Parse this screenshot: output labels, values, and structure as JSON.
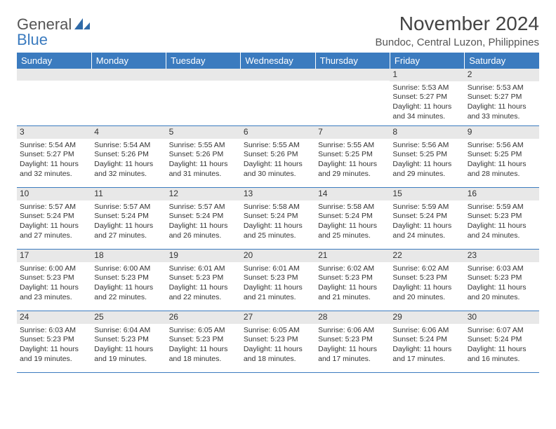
{
  "brand": {
    "line1": "General",
    "line2": "Blue"
  },
  "title": "November 2024",
  "location": "Bundoc, Central Luzon, Philippines",
  "colors": {
    "header_bg": "#3b7bbf",
    "header_fg": "#ffffff",
    "daynum_bg": "#e8e8e8",
    "cell_border": "#3b7bbf",
    "page_bg": "#ffffff",
    "text": "#333333"
  },
  "typography": {
    "title_fontsize": 28,
    "location_fontsize": 15,
    "dayhead_fontsize": 13,
    "cell_fontsize": 10.5
  },
  "day_headers": [
    "Sunday",
    "Monday",
    "Tuesday",
    "Wednesday",
    "Thursday",
    "Friday",
    "Saturday"
  ],
  "weeks": [
    [
      {
        "day": "",
        "sunrise": "",
        "sunset": "",
        "daylight": ""
      },
      {
        "day": "",
        "sunrise": "",
        "sunset": "",
        "daylight": ""
      },
      {
        "day": "",
        "sunrise": "",
        "sunset": "",
        "daylight": ""
      },
      {
        "day": "",
        "sunrise": "",
        "sunset": "",
        "daylight": ""
      },
      {
        "day": "",
        "sunrise": "",
        "sunset": "",
        "daylight": ""
      },
      {
        "day": "1",
        "sunrise": "Sunrise: 5:53 AM",
        "sunset": "Sunset: 5:27 PM",
        "daylight": "Daylight: 11 hours and 34 minutes."
      },
      {
        "day": "2",
        "sunrise": "Sunrise: 5:53 AM",
        "sunset": "Sunset: 5:27 PM",
        "daylight": "Daylight: 11 hours and 33 minutes."
      }
    ],
    [
      {
        "day": "3",
        "sunrise": "Sunrise: 5:54 AM",
        "sunset": "Sunset: 5:27 PM",
        "daylight": "Daylight: 11 hours and 32 minutes."
      },
      {
        "day": "4",
        "sunrise": "Sunrise: 5:54 AM",
        "sunset": "Sunset: 5:26 PM",
        "daylight": "Daylight: 11 hours and 32 minutes."
      },
      {
        "day": "5",
        "sunrise": "Sunrise: 5:55 AM",
        "sunset": "Sunset: 5:26 PM",
        "daylight": "Daylight: 11 hours and 31 minutes."
      },
      {
        "day": "6",
        "sunrise": "Sunrise: 5:55 AM",
        "sunset": "Sunset: 5:26 PM",
        "daylight": "Daylight: 11 hours and 30 minutes."
      },
      {
        "day": "7",
        "sunrise": "Sunrise: 5:55 AM",
        "sunset": "Sunset: 5:25 PM",
        "daylight": "Daylight: 11 hours and 29 minutes."
      },
      {
        "day": "8",
        "sunrise": "Sunrise: 5:56 AM",
        "sunset": "Sunset: 5:25 PM",
        "daylight": "Daylight: 11 hours and 29 minutes."
      },
      {
        "day": "9",
        "sunrise": "Sunrise: 5:56 AM",
        "sunset": "Sunset: 5:25 PM",
        "daylight": "Daylight: 11 hours and 28 minutes."
      }
    ],
    [
      {
        "day": "10",
        "sunrise": "Sunrise: 5:57 AM",
        "sunset": "Sunset: 5:24 PM",
        "daylight": "Daylight: 11 hours and 27 minutes."
      },
      {
        "day": "11",
        "sunrise": "Sunrise: 5:57 AM",
        "sunset": "Sunset: 5:24 PM",
        "daylight": "Daylight: 11 hours and 27 minutes."
      },
      {
        "day": "12",
        "sunrise": "Sunrise: 5:57 AM",
        "sunset": "Sunset: 5:24 PM",
        "daylight": "Daylight: 11 hours and 26 minutes."
      },
      {
        "day": "13",
        "sunrise": "Sunrise: 5:58 AM",
        "sunset": "Sunset: 5:24 PM",
        "daylight": "Daylight: 11 hours and 25 minutes."
      },
      {
        "day": "14",
        "sunrise": "Sunrise: 5:58 AM",
        "sunset": "Sunset: 5:24 PM",
        "daylight": "Daylight: 11 hours and 25 minutes."
      },
      {
        "day": "15",
        "sunrise": "Sunrise: 5:59 AM",
        "sunset": "Sunset: 5:24 PM",
        "daylight": "Daylight: 11 hours and 24 minutes."
      },
      {
        "day": "16",
        "sunrise": "Sunrise: 5:59 AM",
        "sunset": "Sunset: 5:23 PM",
        "daylight": "Daylight: 11 hours and 24 minutes."
      }
    ],
    [
      {
        "day": "17",
        "sunrise": "Sunrise: 6:00 AM",
        "sunset": "Sunset: 5:23 PM",
        "daylight": "Daylight: 11 hours and 23 minutes."
      },
      {
        "day": "18",
        "sunrise": "Sunrise: 6:00 AM",
        "sunset": "Sunset: 5:23 PM",
        "daylight": "Daylight: 11 hours and 22 minutes."
      },
      {
        "day": "19",
        "sunrise": "Sunrise: 6:01 AM",
        "sunset": "Sunset: 5:23 PM",
        "daylight": "Daylight: 11 hours and 22 minutes."
      },
      {
        "day": "20",
        "sunrise": "Sunrise: 6:01 AM",
        "sunset": "Sunset: 5:23 PM",
        "daylight": "Daylight: 11 hours and 21 minutes."
      },
      {
        "day": "21",
        "sunrise": "Sunrise: 6:02 AM",
        "sunset": "Sunset: 5:23 PM",
        "daylight": "Daylight: 11 hours and 21 minutes."
      },
      {
        "day": "22",
        "sunrise": "Sunrise: 6:02 AM",
        "sunset": "Sunset: 5:23 PM",
        "daylight": "Daylight: 11 hours and 20 minutes."
      },
      {
        "day": "23",
        "sunrise": "Sunrise: 6:03 AM",
        "sunset": "Sunset: 5:23 PM",
        "daylight": "Daylight: 11 hours and 20 minutes."
      }
    ],
    [
      {
        "day": "24",
        "sunrise": "Sunrise: 6:03 AM",
        "sunset": "Sunset: 5:23 PM",
        "daylight": "Daylight: 11 hours and 19 minutes."
      },
      {
        "day": "25",
        "sunrise": "Sunrise: 6:04 AM",
        "sunset": "Sunset: 5:23 PM",
        "daylight": "Daylight: 11 hours and 19 minutes."
      },
      {
        "day": "26",
        "sunrise": "Sunrise: 6:05 AM",
        "sunset": "Sunset: 5:23 PM",
        "daylight": "Daylight: 11 hours and 18 minutes."
      },
      {
        "day": "27",
        "sunrise": "Sunrise: 6:05 AM",
        "sunset": "Sunset: 5:23 PM",
        "daylight": "Daylight: 11 hours and 18 minutes."
      },
      {
        "day": "28",
        "sunrise": "Sunrise: 6:06 AM",
        "sunset": "Sunset: 5:23 PM",
        "daylight": "Daylight: 11 hours and 17 minutes."
      },
      {
        "day": "29",
        "sunrise": "Sunrise: 6:06 AM",
        "sunset": "Sunset: 5:24 PM",
        "daylight": "Daylight: 11 hours and 17 minutes."
      },
      {
        "day": "30",
        "sunrise": "Sunrise: 6:07 AM",
        "sunset": "Sunset: 5:24 PM",
        "daylight": "Daylight: 11 hours and 16 minutes."
      }
    ]
  ]
}
